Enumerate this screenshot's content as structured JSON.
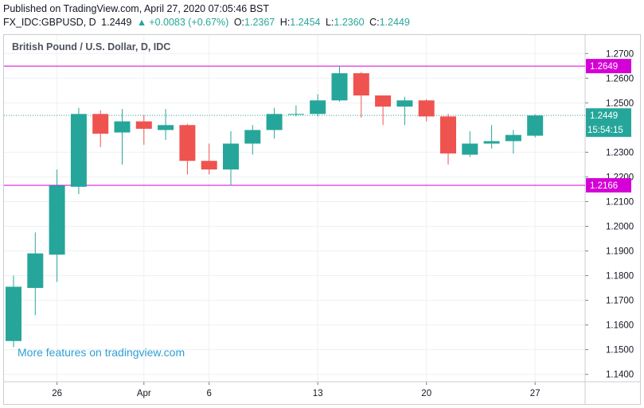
{
  "header": {
    "published": "Published on TradingView.com, April 27, 2020 07:05:46 BST",
    "symbol": "FX_IDC:GBPUSD, D",
    "last": "1.2449",
    "change": "+0.0083 (+0.67%)",
    "o_label": "O:",
    "o_value": "1.2367",
    "h_label": "H:",
    "h_value": "1.2454",
    "l_label": "L:",
    "l_value": "1.2360",
    "c_label": "C:",
    "c_value": "1.2449"
  },
  "pane_title": "British Pound / U.S. Dollar, D, IDC",
  "watermark": "More features on tradingview.com",
  "colors": {
    "up": "#26a69a",
    "down": "#ef5350",
    "hline": "#d500d5",
    "lastline": "#26a69a",
    "grid": "#eef0f3",
    "axis_text": "#131722",
    "timer_bg": "#26a69a"
  },
  "chart_data": {
    "type": "candlestick",
    "title": "British Pound / U.S. Dollar, D, IDC",
    "ylim": [
      1.137,
      1.2775
    ],
    "y_ticks": [
      "1.2700",
      "1.2600",
      "1.2500",
      "1.2300",
      "1.2200",
      "1.2100",
      "1.2000",
      "1.1900",
      "1.1800",
      "1.1700",
      "1.1600",
      "1.1500",
      "1.1400"
    ],
    "x_ticks": [
      {
        "label": "26",
        "index": 2
      },
      {
        "label": "Apr",
        "index": 6
      },
      {
        "label": "6",
        "index": 9
      },
      {
        "label": "13",
        "index": 14
      },
      {
        "label": "20",
        "index": 19
      },
      {
        "label": "27",
        "index": 24
      }
    ],
    "candles": [
      {
        "o": 1.1535,
        "h": 1.18,
        "l": 1.151,
        "c": 1.1755
      },
      {
        "o": 1.175,
        "h": 1.1975,
        "l": 1.164,
        "c": 1.189
      },
      {
        "o": 1.1885,
        "h": 1.223,
        "l": 1.1775,
        "c": 1.2165
      },
      {
        "o": 1.216,
        "h": 1.248,
        "l": 1.213,
        "c": 1.2455
      },
      {
        "o": 1.2455,
        "h": 1.247,
        "l": 1.232,
        "c": 1.2375
      },
      {
        "o": 1.238,
        "h": 1.2475,
        "l": 1.225,
        "c": 1.2425
      },
      {
        "o": 1.2425,
        "h": 1.245,
        "l": 1.233,
        "c": 1.2395
      },
      {
        "o": 1.239,
        "h": 1.2475,
        "l": 1.235,
        "c": 1.241
      },
      {
        "o": 1.241,
        "h": 1.2415,
        "l": 1.221,
        "c": 1.2265
      },
      {
        "o": 1.2265,
        "h": 1.2335,
        "l": 1.221,
        "c": 1.223
      },
      {
        "o": 1.223,
        "h": 1.2385,
        "l": 1.2165,
        "c": 1.2335
      },
      {
        "o": 1.2335,
        "h": 1.241,
        "l": 1.229,
        "c": 1.239
      },
      {
        "o": 1.239,
        "h": 1.248,
        "l": 1.2355,
        "c": 1.2455
      },
      {
        "o": 1.2455,
        "h": 1.249,
        "l": 1.2445,
        "c": 1.2455
      },
      {
        "o": 1.2455,
        "h": 1.2535,
        "l": 1.2445,
        "c": 1.251
      },
      {
        "o": 1.251,
        "h": 1.265,
        "l": 1.2505,
        "c": 1.262
      },
      {
        "o": 1.262,
        "h": 1.2625,
        "l": 1.244,
        "c": 1.253
      },
      {
        "o": 1.253,
        "h": 1.253,
        "l": 1.241,
        "c": 1.2485
      },
      {
        "o": 1.2485,
        "h": 1.2525,
        "l": 1.241,
        "c": 1.251
      },
      {
        "o": 1.251,
        "h": 1.2515,
        "l": 1.2425,
        "c": 1.2445
      },
      {
        "o": 1.2445,
        "h": 1.2455,
        "l": 1.225,
        "c": 1.2295
      },
      {
        "o": 1.229,
        "h": 1.2385,
        "l": 1.228,
        "c": 1.2335
      },
      {
        "o": 1.2335,
        "h": 1.241,
        "l": 1.2315,
        "c": 1.2345
      },
      {
        "o": 1.2345,
        "h": 1.239,
        "l": 1.2295,
        "c": 1.237
      },
      {
        "o": 1.2367,
        "h": 1.2454,
        "l": 1.236,
        "c": 1.2449
      }
    ],
    "hlines": [
      {
        "value": 1.2649,
        "label": "1.2649"
      },
      {
        "value": 1.2166,
        "label": "1.2166"
      }
    ],
    "last_price": {
      "value": 1.2449,
      "label": "1.2449",
      "timer": "15:54:15"
    }
  }
}
